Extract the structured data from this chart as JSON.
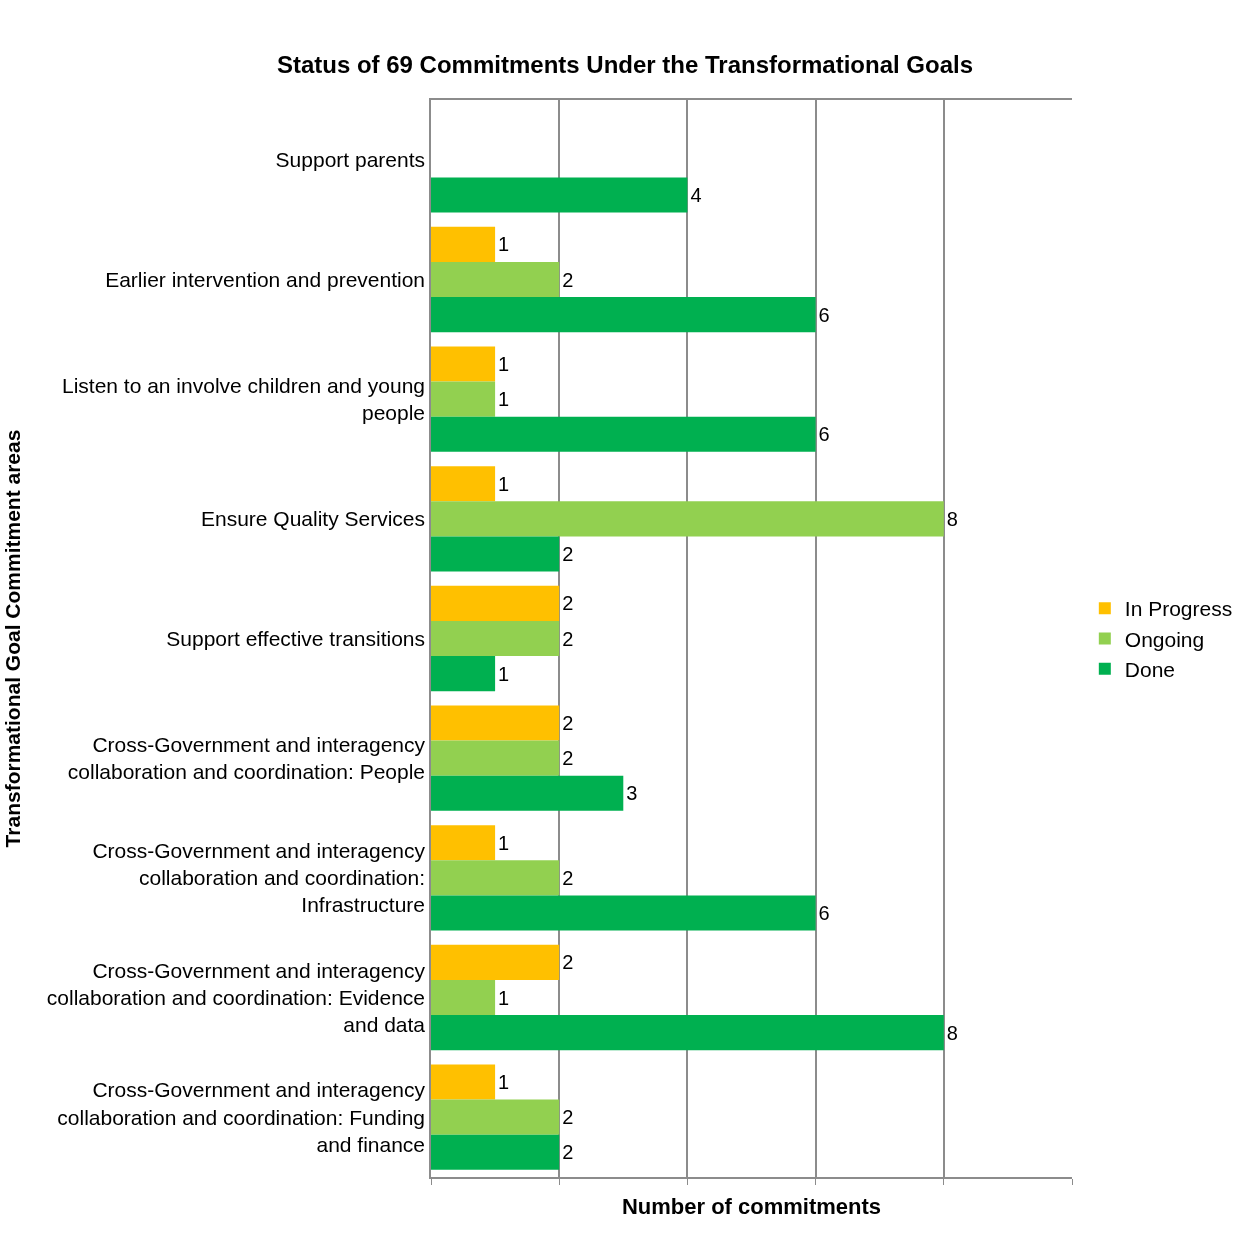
{
  "chart_data": {
    "type": "bar",
    "orientation": "horizontal",
    "title": "Status of 69 Commitments Under the Transformational Goals",
    "xlabel": "Number of commitments",
    "ylabel": "Transformational Goal Commitment areas",
    "categories": [
      "Support parents",
      "Earlier intervention and prevention",
      "Listen to an involve children and young people",
      "Ensure Quality Services",
      "Support effective transitions",
      "Cross-Government and interagency collaboration and coordination: People",
      "Cross-Government and interagency collaboration and coordination: Infrastructure",
      "Cross-Government and interagency collaboration and coordination: Evidence and data",
      "Cross-Government and interagency collaboration and coordination: Funding and finance"
    ],
    "series": [
      {
        "name": "In Progress",
        "color": "#ffc000",
        "values": [
          null,
          1,
          1,
          1,
          2,
          2,
          1,
          2,
          1
        ]
      },
      {
        "name": "Ongoing",
        "color": "#92d050",
        "values": [
          null,
          2,
          1,
          8,
          2,
          2,
          2,
          1,
          2
        ]
      },
      {
        "name": "Done",
        "color": "#00b050",
        "values": [
          4,
          6,
          6,
          2,
          1,
          3,
          6,
          8,
          2
        ]
      }
    ],
    "xlim": [
      0,
      10
    ],
    "xticks": [
      {
        "value": 0,
        "label": null
      },
      {
        "value": 2,
        "label": null
      },
      {
        "value": 4,
        "label": null
      },
      {
        "value": 6,
        "label": null
      },
      {
        "value": 8,
        "label": null
      },
      {
        "value": 10,
        "label": null
      }
    ],
    "tick_labels": "y",
    "grid": "x",
    "legend": "right",
    "data_labels": true
  }
}
